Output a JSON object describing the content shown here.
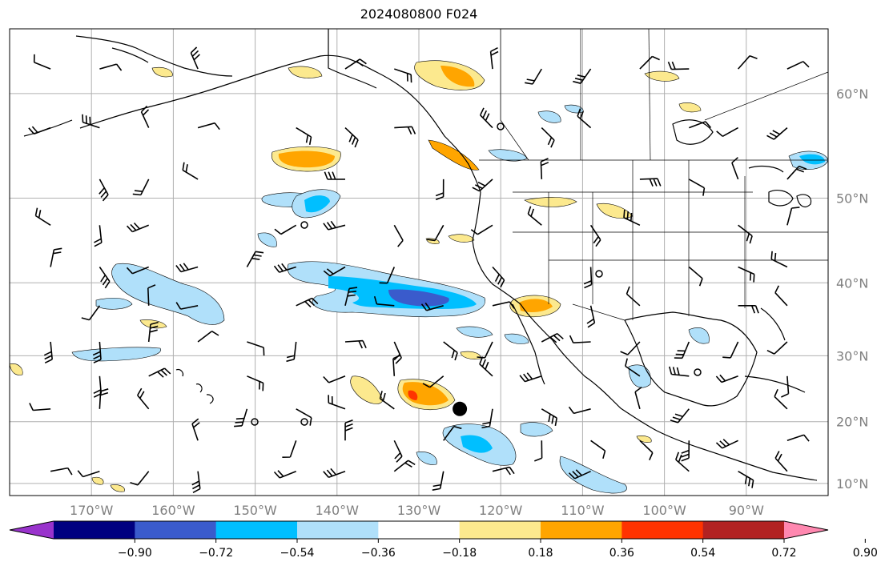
{
  "title": "2024080800 F024",
  "map": {
    "lat_labels": [
      {
        "text": "60°N",
        "lat": 60
      },
      {
        "text": "50°N",
        "lat": 50
      },
      {
        "text": "40°N",
        "lat": 40
      },
      {
        "text": "30°N",
        "lat": 30
      },
      {
        "text": "20°N",
        "lat": 20
      },
      {
        "text": "10°N",
        "lat": 10
      }
    ],
    "lon_labels": [
      {
        "text": "170°W",
        "lon": -170
      },
      {
        "text": "160°W",
        "lon": -160
      },
      {
        "text": "150°W",
        "lon": -150
      },
      {
        "text": "140°W",
        "lon": -140
      },
      {
        "text": "130°W",
        "lon": -130
      },
      {
        "text": "120°W",
        "lon": -120
      },
      {
        "text": "110°W",
        "lon": -110
      },
      {
        "text": "100°W",
        "lon": -100
      },
      {
        "text": "90°W",
        "lon": -90
      }
    ],
    "extent": {
      "lon_min": -180,
      "lon_max": -80,
      "lat_min": 8,
      "lat_max": 65
    },
    "marker": {
      "lon": -125,
      "lat": 22
    }
  },
  "colorbar": {
    "colors": [
      "#9933cc",
      "#000080",
      "#3a5bcc",
      "#00bfff",
      "#b0e0fa",
      "#ffffff",
      "#fce98e",
      "#ffa500",
      "#ff3300",
      "#b22222",
      "#ff88b0"
    ],
    "labels": [
      "−0.90",
      "−0.72",
      "−0.54",
      "−0.36",
      "−0.18",
      "0.18",
      "0.36",
      "0.54",
      "0.72",
      "0.90"
    ]
  },
  "colors": {
    "grid": "#b0b0b0",
    "coast": "#000000",
    "axis_label": "#7f7f7f"
  }
}
